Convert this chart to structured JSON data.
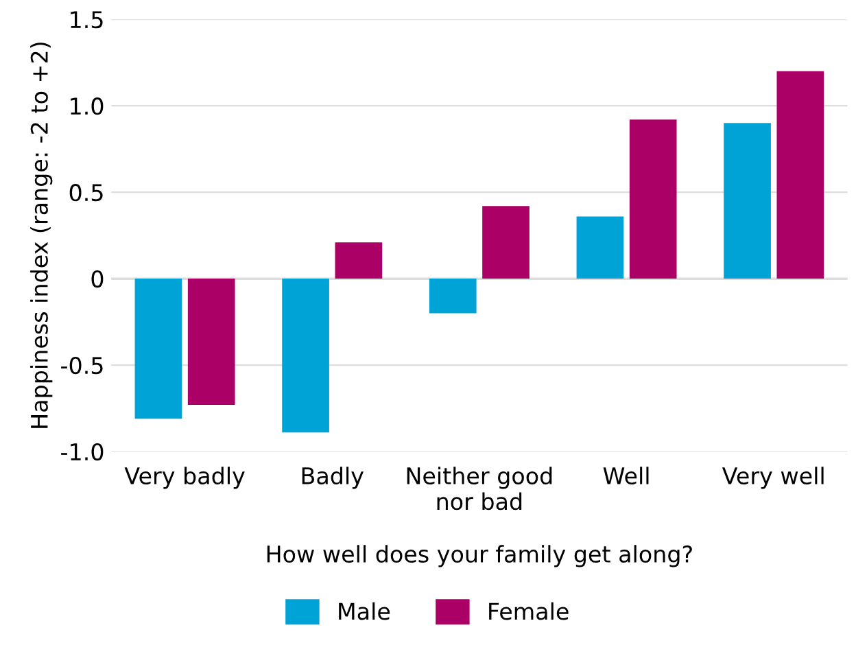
{
  "chart_data": {
    "type": "bar",
    "xlabel": "How well does your family get along?",
    "ylabel": "Happiness index (range: -2 to +2)",
    "categories": [
      "Very badly",
      "Badly",
      "Neither good\nnor bad",
      "Well",
      "Very well"
    ],
    "series": [
      {
        "name": "Male",
        "color": "#00a3d6",
        "values": [
          -0.81,
          -0.89,
          -0.2,
          0.36,
          0.9
        ]
      },
      {
        "name": "Female",
        "color": "#ab0066",
        "values": [
          -0.73,
          0.21,
          0.42,
          0.92,
          1.2
        ]
      }
    ],
    "ylim": [
      -1.0,
      1.5
    ],
    "yticks": [
      {
        "value": -1.0,
        "label": "-1.0"
      },
      {
        "value": -0.5,
        "label": "-0.5"
      },
      0,
      {
        "value": 0.5,
        "label": "0.5"
      },
      {
        "value": 1.0,
        "label": "1.0"
      },
      {
        "value": 1.5,
        "label": "1.5"
      }
    ],
    "grid": "y",
    "legend": "bottom"
  }
}
